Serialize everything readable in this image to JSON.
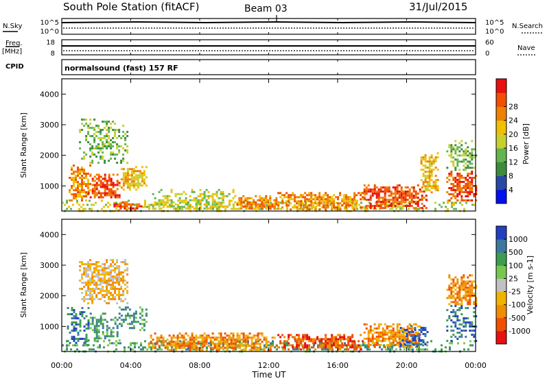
{
  "header": {
    "station": "South Pole Station (fitACF)",
    "beam": "Beam 03",
    "date": "31/Jul/2015"
  },
  "top_panels": {
    "nsky_label": "N.Sky",
    "nsearch_label": "N.Search",
    "freq_label": "Freq.",
    "freq_unit": "[MHz]",
    "nave_label": "Nave",
    "cpid_label": "CPID",
    "noise_ticks_left": [
      "10^5",
      "10^0"
    ],
    "noise_ticks_right": [
      "10^5",
      "10^0"
    ],
    "freq_ticks": [
      "18",
      "8"
    ],
    "nave_ticks": [
      "60",
      "0"
    ],
    "cpid_text": "normalsound (fast) 157 RF"
  },
  "x_axis": {
    "label": "Time UT",
    "ticks": [
      "00:00",
      "04:00",
      "08:00",
      "12:00",
      "16:00",
      "20:00",
      "00:00"
    ]
  },
  "chart_data": [
    {
      "type": "heatmap",
      "title": "",
      "xlabel": "Time UT",
      "ylabel": "Slant Range [km]",
      "x_range_hours": [
        0,
        24
      ],
      "ylim": [
        180,
        4500
      ],
      "y_ticks": [
        "1000",
        "2000",
        "3000",
        "4000"
      ],
      "colorbar": {
        "label": "Power [dB]",
        "ticks": [
          "4",
          "8",
          "12",
          "16",
          "20",
          "24",
          "28"
        ],
        "colors": [
          "#0010f0",
          "#2848a8",
          "#3c8c3c",
          "#64b450",
          "#c8d030",
          "#f0c000",
          "#f08000",
          "#f05000",
          "#e81010"
        ]
      },
      "echo_regions": [
        {
          "t0": 0.4,
          "t1": 1.6,
          "r0": 500,
          "r1": 1700,
          "level": 6
        },
        {
          "t0": 1.5,
          "t1": 3.4,
          "r0": 600,
          "r1": 1400,
          "level": 7
        },
        {
          "t0": 3.3,
          "t1": 4.9,
          "r0": 900,
          "r1": 1650,
          "level": 5
        },
        {
          "t0": 1.0,
          "t1": 3.8,
          "r0": 1750,
          "r1": 3200,
          "level": 3
        },
        {
          "t0": 0.0,
          "t1": 24.0,
          "r0": 200,
          "r1": 550,
          "level": 4
        },
        {
          "t0": 3.0,
          "t1": 4.6,
          "r0": 200,
          "r1": 500,
          "level": 7
        },
        {
          "t0": 10.0,
          "t1": 12.6,
          "r0": 250,
          "r1": 700,
          "level": 6
        },
        {
          "t0": 12.5,
          "t1": 17.6,
          "r0": 250,
          "r1": 800,
          "level": 6
        },
        {
          "t0": 17.5,
          "t1": 21.2,
          "r0": 300,
          "r1": 1050,
          "level": 7
        },
        {
          "t0": 20.8,
          "t1": 21.8,
          "r0": 800,
          "r1": 2100,
          "level": 5
        },
        {
          "t0": 22.3,
          "t1": 24.0,
          "r0": 500,
          "r1": 1500,
          "level": 7
        },
        {
          "t0": 22.3,
          "t1": 24.0,
          "r0": 1500,
          "r1": 2500,
          "level": 3
        },
        {
          "t0": 5.0,
          "t1": 10.0,
          "r0": 250,
          "r1": 900,
          "level": 4
        }
      ]
    },
    {
      "type": "heatmap",
      "title": "",
      "xlabel": "Time UT",
      "ylabel": "Slant Range [km]",
      "x_range_hours": [
        0,
        24
      ],
      "ylim": [
        180,
        4500
      ],
      "y_ticks": [
        "1000",
        "2000",
        "3000",
        "4000"
      ],
      "colorbar": {
        "label": "Velocity [m s-1]",
        "ticks": [
          "1000",
          "500",
          "100",
          "25",
          "-25",
          "-100",
          "-500",
          "-1000"
        ],
        "colors": [
          "#2040c0",
          "#3c78a0",
          "#3c9c50",
          "#78c850",
          "#c0c0c0",
          "#f0b400",
          "#f08c00",
          "#f05000",
          "#e81010"
        ]
      },
      "echo_regions": [
        {
          "t0": 0.3,
          "t1": 1.6,
          "r0": 400,
          "r1": 1700,
          "level": 1
        },
        {
          "t0": 1.5,
          "t1": 3.4,
          "r0": 550,
          "r1": 1450,
          "level": 2
        },
        {
          "t0": 3.3,
          "t1": 4.9,
          "r0": 900,
          "r1": 1650,
          "level": 2
        },
        {
          "t0": 1.0,
          "t1": 3.8,
          "r0": 1750,
          "r1": 3200,
          "level": 5
        },
        {
          "t0": 0.0,
          "t1": 24.0,
          "r0": 200,
          "r1": 550,
          "level": 2
        },
        {
          "t0": 5.0,
          "t1": 12.5,
          "r0": 250,
          "r1": 800,
          "level": 6
        },
        {
          "t0": 12.5,
          "t1": 17.5,
          "r0": 250,
          "r1": 750,
          "level": 7
        },
        {
          "t0": 17.5,
          "t1": 20.8,
          "r0": 300,
          "r1": 1100,
          "level": 6
        },
        {
          "t0": 19.6,
          "t1": 21.2,
          "r0": 350,
          "r1": 1050,
          "level": 0
        },
        {
          "t0": 22.3,
          "t1": 24.0,
          "r0": 500,
          "r1": 1700,
          "level": 1
        },
        {
          "t0": 22.3,
          "t1": 24.0,
          "r0": 1700,
          "r1": 2700,
          "level": 6
        }
      ]
    }
  ]
}
